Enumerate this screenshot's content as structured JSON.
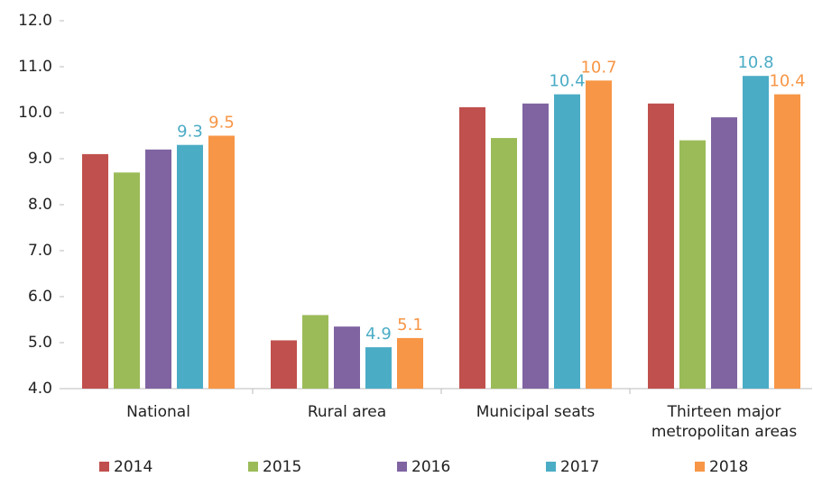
{
  "chart_data": {
    "type": "bar",
    "categories": [
      "National",
      "Rural area",
      "Municipal seats",
      "Thirteen major metropolitan areas"
    ],
    "series": [
      {
        "name": "2014",
        "color": "#c0504d",
        "values": [
          9.1,
          5.05,
          10.12,
          10.2
        ]
      },
      {
        "name": "2015",
        "color": "#9bbb59",
        "values": [
          8.7,
          5.6,
          9.45,
          9.4
        ]
      },
      {
        "name": "2016",
        "color": "#8064a2",
        "values": [
          9.2,
          5.35,
          10.2,
          9.9
        ]
      },
      {
        "name": "2017",
        "color": "#4bacc6",
        "values": [
          9.3,
          4.9,
          10.4,
          10.8
        ],
        "value_labels": [
          "9.3",
          "4.9",
          "10.4",
          "10.8"
        ]
      },
      {
        "name": "2018",
        "color": "#f79646",
        "values": [
          9.5,
          5.1,
          10.7,
          10.4
        ],
        "value_labels": [
          "9.5",
          "5.1",
          "10.7",
          "10.4"
        ]
      }
    ],
    "ylim": [
      4,
      12
    ],
    "yticks": [
      {
        "value": 4,
        "label": "4.0"
      },
      {
        "value": 5,
        "label": "5.0"
      },
      {
        "value": 6,
        "label": "6.0"
      },
      {
        "value": 7,
        "label": "7.0"
      },
      {
        "value": 8,
        "label": "8.0"
      },
      {
        "value": 9,
        "label": "9.0"
      },
      {
        "value": 10,
        "label": "10.0"
      },
      {
        "value": 11,
        "label": "11.0"
      },
      {
        "value": 12,
        "label": "12.0"
      }
    ],
    "grid": false
  }
}
